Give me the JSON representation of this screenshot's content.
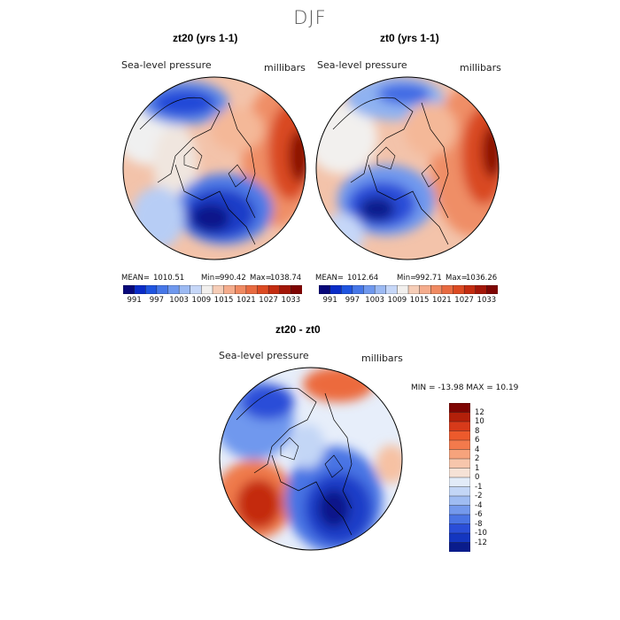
{
  "figure_title": "DJF",
  "panels": [
    {
      "title": "zt20 (yrs 1-1)",
      "variable": "Sea-level pressure",
      "units": "millibars",
      "stats": {
        "mean_label": "MEAN=",
        "mean": "1010.51",
        "min_label": "Min=",
        "min": "990.42",
        "max_label": "Max=",
        "max": "1038.74"
      }
    },
    {
      "title": "zt0 (yrs 1-1)",
      "variable": "Sea-level pressure",
      "units": "millibars",
      "stats": {
        "mean_label": "MEAN=",
        "mean": "1012.64",
        "min_label": "Min=",
        "min": "992.71",
        "max_label": "Max=",
        "max": "1036.26"
      }
    },
    {
      "title": "zt20 - zt0",
      "variable": "Sea-level pressure",
      "units": "millibars",
      "stats_line": "MIN = -13.98  MAX =  10.19"
    }
  ],
  "abs_colorbar": {
    "tick_labels": [
      "991",
      "997",
      "1003",
      "1009",
      "1015",
      "1021",
      "1027",
      "1033"
    ],
    "colors": [
      "#08087a",
      "#0a2cc8",
      "#1f54e0",
      "#4677e8",
      "#6f98ee",
      "#9cbaf3",
      "#c6d7f8",
      "#f2f0ee",
      "#f6cdb7",
      "#f5ac8c",
      "#f08a62",
      "#e86a40",
      "#dc4a22",
      "#c42c10",
      "#a31608",
      "#7e0503"
    ]
  },
  "diff_colorbar": {
    "tick_labels": [
      "12",
      "10",
      "8",
      "6",
      "4",
      "2",
      "1",
      "0",
      "-1",
      "-2",
      "-4",
      "-6",
      "-8",
      "-10",
      "-12"
    ],
    "colors": [
      "#7e0503",
      "#b3200a",
      "#d73a1a",
      "#ec5a2c",
      "#f27a4c",
      "#f6a37c",
      "#f7c6ac",
      "#f6e2d6",
      "#e2ebf8",
      "#c3d6f6",
      "#9fbcf2",
      "#7499ec",
      "#4a74e4",
      "#2a4ed8",
      "#1436c0",
      "#0a1c8c"
    ]
  }
}
